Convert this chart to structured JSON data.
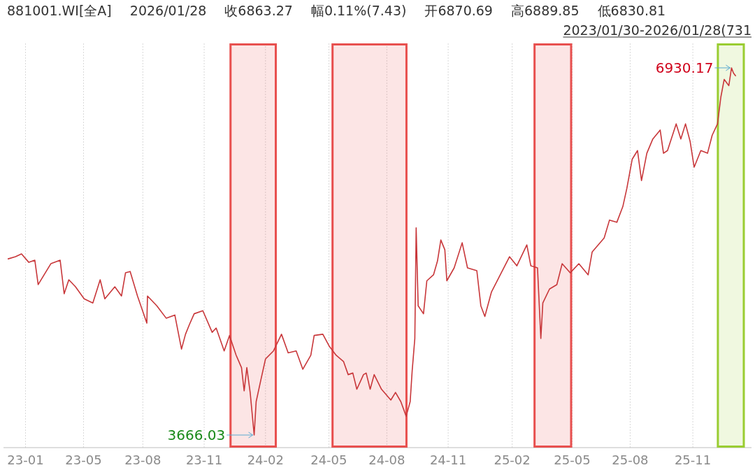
{
  "chart_data": {
    "type": "line",
    "title": "881001.WI[全A]",
    "subtitle": "2026/01/28",
    "annotations": [
      "收6863.27",
      "幅0.11%(7.43)",
      "开6870.69",
      "高6889.85",
      "低6830.81",
      "2023/01/30-2026/01/28(731"
    ],
    "value_labels": [
      null,
      null,
      null,
      null,
      null,
      null,
      null,
      null,
      null,
      null,
      null,
      null,
      null,
      null,
      null,
      null,
      null,
      null,
      null,
      null,
      null,
      null,
      null,
      null,
      null,
      null,
      null,
      null,
      null,
      null,
      null,
      null,
      null,
      null,
      null,
      null,
      null,
      null,
      null,
      "3666.03",
      null,
      null,
      null,
      null,
      null,
      null,
      null,
      null,
      null,
      null,
      null,
      null,
      null,
      null,
      null,
      null,
      null,
      null,
      null,
      null,
      null,
      null,
      null,
      null,
      null,
      null,
      null,
      null,
      null,
      null,
      null,
      null,
      null,
      null,
      null,
      null,
      null,
      null,
      null,
      null,
      null,
      null,
      null,
      null,
      null,
      null,
      null,
      null,
      null,
      null,
      null,
      null,
      null,
      null,
      null,
      null,
      null,
      null,
      null,
      null,
      null,
      null,
      null,
      null,
      null,
      null,
      null,
      null,
      null,
      null,
      null,
      null,
      null,
      null,
      null,
      null,
      null,
      null,
      null,
      null,
      null,
      null,
      null,
      null,
      null,
      "6930.17",
      null,
      null
    ],
    "x": [
      "2023-02-02",
      "2023-02-13",
      "2023-02-22",
      "2023-03-05",
      "2023-03-14",
      "2023-03-19",
      "2023-04-07",
      "2023-04-21",
      "2023-04-27",
      "2023-05-04",
      "2023-05-14",
      "2023-05-27",
      "2023-06-09",
      "2023-06-20",
      "2023-06-27",
      "2023-07-12",
      "2023-07-22",
      "2023-07-28",
      "2023-08-04",
      "2023-08-15",
      "2023-08-29",
      "2023-08-30",
      "2023-09-13",
      "2023-09-27",
      "2023-10-10",
      "2023-10-20",
      "2023-10-26",
      "2023-11-01",
      "2023-11-08",
      "2023-11-21",
      "2023-12-05",
      "2023-12-11",
      "2023-12-23",
      "2023-12-31",
      "2024-01-10",
      "2024-01-18",
      "2024-01-22",
      "2024-01-26",
      "2024-01-31",
      "2024-02-06",
      "2024-02-09",
      "2024-02-16",
      "2024-02-23",
      "2024-03-06",
      "2024-03-18",
      "2024-03-28",
      "2024-04-09",
      "2024-04-19",
      "2024-05-01",
      "2024-05-06",
      "2024-05-19",
      "2024-05-29",
      "2024-06-08",
      "2024-06-19",
      "2024-06-26",
      "2024-07-03",
      "2024-07-09",
      "2024-07-19",
      "2024-07-23",
      "2024-07-29",
      "2024-08-04",
      "2024-08-15",
      "2024-08-29",
      "2024-09-05",
      "2024-09-13",
      "2024-09-21",
      "2024-09-27",
      "2024-09-30",
      "2024-10-04",
      "2024-10-06",
      "2024-10-09",
      "2024-10-17",
      "2024-10-22",
      "2024-11-01",
      "2024-11-07",
      "2024-11-12",
      "2024-11-18",
      "2024-11-21",
      "2024-12-02",
      "2024-12-14",
      "2024-12-22",
      "2025-01-05",
      "2025-01-11",
      "2025-01-17",
      "2025-01-27",
      "2025-02-07",
      "2025-02-23",
      "2025-03-06",
      "2025-03-21",
      "2025-03-27",
      "2025-04-06",
      "2025-04-11",
      "2025-04-14",
      "2025-04-24",
      "2025-05-05",
      "2025-05-13",
      "2025-05-25",
      "2025-06-07",
      "2025-06-21",
      "2025-06-27",
      "2025-07-15",
      "2025-07-23",
      "2025-08-03",
      "2025-08-12",
      "2025-08-18",
      "2025-08-26",
      "2025-09-03",
      "2025-09-09",
      "2025-09-17",
      "2025-09-26",
      "2025-10-07",
      "2025-10-12",
      "2025-10-18",
      "2025-10-31",
      "2025-11-07",
      "2025-11-14",
      "2025-11-21",
      "2025-11-27",
      "2025-12-07",
      "2025-12-17",
      "2025-12-24",
      "2026-01-01",
      "2026-01-06",
      "2026-01-11",
      "2026-01-18",
      "2026-01-22",
      "2026-01-25",
      "2026-01-28"
    ],
    "values": [
      5232,
      5251,
      5276,
      5201,
      5220,
      5003,
      5189,
      5220,
      4922,
      5046,
      4984,
      4877,
      4840,
      5046,
      4877,
      4984,
      4902,
      5108,
      5120,
      4902,
      4661,
      4902,
      4815,
      4705,
      4733,
      4430,
      4562,
      4650,
      4744,
      4771,
      4579,
      4617,
      4414,
      4551,
      4375,
      4265,
      4059,
      4265,
      4045,
      3666.03,
      3963,
      4155,
      4342,
      4414,
      4562,
      4397,
      4414,
      4251,
      4375,
      4551,
      4562,
      4452,
      4375,
      4320,
      4203,
      4217,
      4073,
      4203,
      4217,
      4073,
      4203,
      4073,
      3977,
      4045,
      3963,
      3833,
      3963,
      4236,
      4524,
      5508,
      4815,
      4744,
      5037,
      5090,
      5214,
      5400,
      5313,
      5037,
      5152,
      5375,
      5152,
      5127,
      4815,
      4720,
      4939,
      5065,
      5251,
      5170,
      5356,
      5170,
      5152,
      4524,
      4840,
      4964,
      5003,
      5189,
      5108,
      5189,
      5090,
      5294,
      5418,
      5577,
      5557,
      5697,
      5858,
      6117,
      6195,
      5928,
      6171,
      6298,
      6377,
      6171,
      6195,
      6432,
      6298,
      6432,
      6274,
      6047,
      6195,
      6171,
      6330,
      6432,
      6669,
      6827,
      6772,
      6930.17,
      6883,
      6860
    ],
    "color": "#c8373a",
    "grid": "x",
    "tick_labels": "x",
    "xlim": [
      "2023-01-26",
      "2026-02-21"
    ],
    "xticks": [
      {
        "value": "2023-02-28",
        "label": "23-01"
      },
      {
        "value": "2023-05-26",
        "label": "23-05"
      },
      {
        "value": "2023-08-23",
        "label": "23-08"
      },
      {
        "value": "2023-11-23",
        "label": "23-11"
      },
      {
        "value": "2024-02-23",
        "label": "24-02"
      },
      {
        "value": "2024-05-28",
        "label": "24-05"
      },
      {
        "value": "2024-08-23",
        "label": "24-08"
      },
      {
        "value": "2024-11-23",
        "label": "24-11"
      },
      {
        "value": "2025-02-27",
        "label": "25-02"
      },
      {
        "value": "2025-05-28",
        "label": "25-05"
      },
      {
        "value": "2025-08-23",
        "label": "25-08"
      },
      {
        "value": "2025-11-25",
        "label": "25-11"
      }
    ],
    "bands": [
      {
        "axis": "x",
        "from": "2023-12-31",
        "to": "2024-03-11",
        "color": "#e8504f"
      },
      {
        "axis": "x",
        "from": "2024-06-01",
        "to": "2024-09-23",
        "color": "#e8504f"
      },
      {
        "axis": "x",
        "from": "2025-03-31",
        "to": "2025-05-28",
        "color": "#e8504f"
      },
      {
        "axis": "x",
        "from": "2025-12-31",
        "to": "2026-02-11",
        "color": "#9acd32"
      }
    ]
  }
}
